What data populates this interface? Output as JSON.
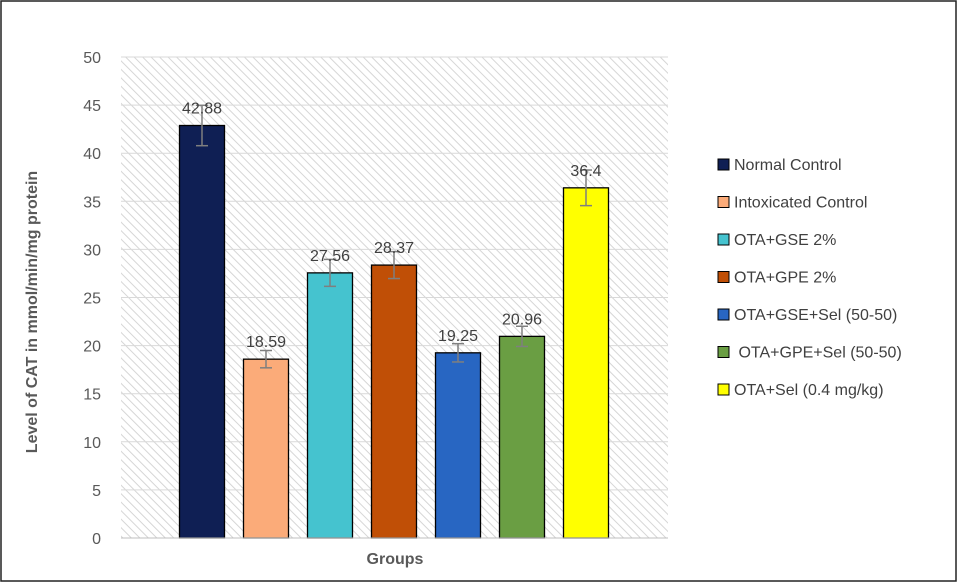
{
  "chart_data": {
    "type": "bar",
    "xlabel": "Groups",
    "ylabel": "Level of CAT in mmol/min/mg protein",
    "ylim": [
      0,
      50
    ],
    "ytick_step": 5,
    "yticks": [
      "0",
      "5",
      "10",
      "15",
      "20",
      "25",
      "30",
      "35",
      "40",
      "45",
      "50"
    ],
    "grid": true,
    "plot_background": "diagonal-hatch",
    "legend_position": "right",
    "series": [
      {
        "name": "Normal Control",
        "value": 42.88,
        "label": "42.88",
        "error": 2.1,
        "color": "#0f1f54"
      },
      {
        "name": "Intoxicated Control",
        "value": 18.59,
        "label": "18.59",
        "error": 0.9,
        "color": "#fbab79"
      },
      {
        "name": "OTA+GSE 2%",
        "value": 27.56,
        "label": "27.56",
        "error": 1.4,
        "color": "#45c3cf"
      },
      {
        "name": "OTA+GPE 2%",
        "value": 28.37,
        "label": "28.37",
        "error": 1.4,
        "color": "#c04f06"
      },
      {
        "name": "OTA+GSE+Sel (50-50)",
        "value": 19.25,
        "label": "19.25",
        "error": 0.95,
        "color": "#2866c2"
      },
      {
        "name": " OTA+GPE+Sel (50-50)",
        "value": 20.96,
        "label": "20.96",
        "error": 1.05,
        "color": "#6a9e43"
      },
      {
        "name": "OTA+Sel (0.4 mg/kg)",
        "value": 36.4,
        "label": "36.4",
        "error": 1.85,
        "color": "#ffff00"
      }
    ]
  }
}
